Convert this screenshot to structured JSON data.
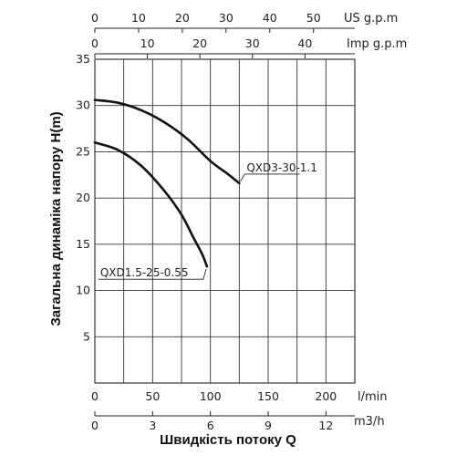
{
  "chart_data": {
    "type": "line",
    "title": "",
    "xlabel": "Швидкість потоку Q",
    "ylabel": "Загальна динаміка напору H(m)",
    "xlim": [
      0,
      225
    ],
    "ylim": [
      0,
      35
    ],
    "y_ticks": [
      5,
      10,
      15,
      20,
      25,
      30,
      35
    ],
    "grid": true,
    "axes": [
      {
        "unit": "US g.p.m",
        "ticks": [
          "0",
          "10",
          "20",
          "30",
          "40",
          "50"
        ],
        "values_lpm": [
          0,
          37.85,
          75.7,
          113.55,
          151.4,
          189.25
        ]
      },
      {
        "unit": "Imp g.p.m",
        "ticks": [
          "0",
          "10",
          "20",
          "30",
          "40"
        ],
        "values_lpm": [
          0,
          45.46,
          90.92,
          136.38,
          181.84
        ]
      },
      {
        "unit": "l/min",
        "ticks": [
          "0",
          "50",
          "100",
          "150",
          "200"
        ],
        "values_lpm": [
          0,
          50,
          100,
          150,
          200
        ]
      },
      {
        "unit": "m3/h",
        "ticks": [
          "0",
          "3",
          "6",
          "9",
          "12"
        ],
        "values_lpm": [
          0,
          50,
          100,
          150,
          200
        ]
      }
    ],
    "series": [
      {
        "name": "QXD3-30-1.1",
        "color": "#111111",
        "x": [
          0,
          20,
          40,
          60,
          80,
          100,
          115,
          125
        ],
        "y": [
          30.6,
          30.3,
          29.5,
          28.2,
          26.4,
          24.0,
          22.6,
          21.6
        ]
      },
      {
        "name": "QXD1.5-25-0.55",
        "color": "#111111",
        "x": [
          0,
          20,
          40,
          60,
          75,
          85,
          93,
          97
        ],
        "y": [
          26.0,
          25.2,
          23.5,
          20.8,
          18.2,
          15.8,
          13.9,
          12.6
        ]
      }
    ]
  }
}
